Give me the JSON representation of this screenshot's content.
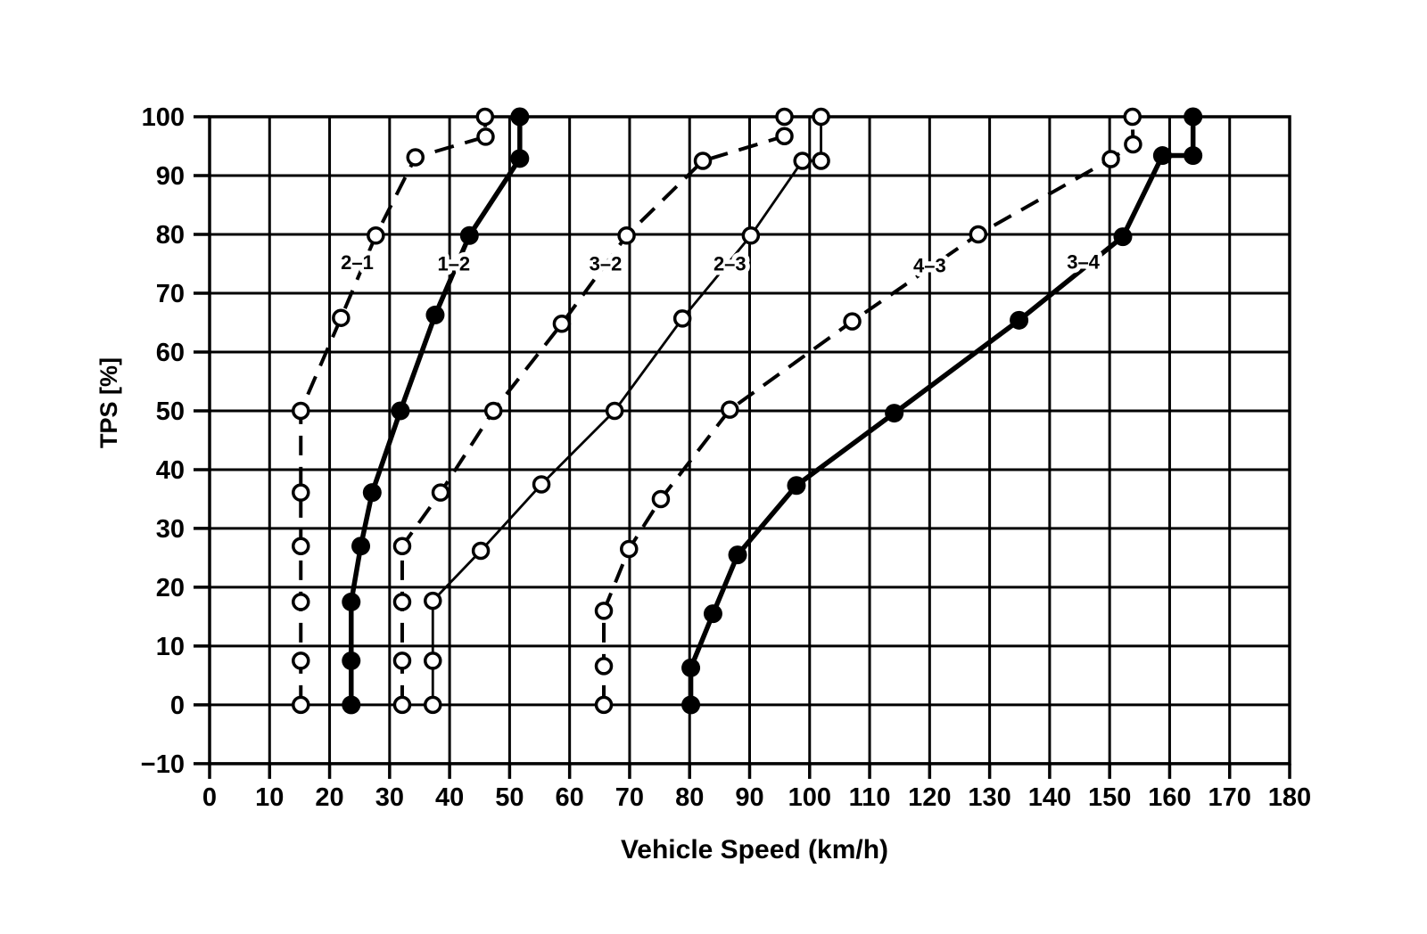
{
  "colors": {
    "ink": "#000000",
    "background": "#ffffff"
  },
  "chart_data": {
    "type": "line",
    "title": "",
    "xlabel": "Vehicle Speed (km/h)",
    "ylabel": "TPS [%]",
    "xlim": [
      0,
      180
    ],
    "ylim": [
      -10,
      100
    ],
    "grid": true,
    "legend_position": "none",
    "x_ticks": [
      0,
      10,
      20,
      30,
      40,
      50,
      60,
      70,
      80,
      90,
      100,
      110,
      120,
      130,
      140,
      150,
      160,
      170,
      180
    ],
    "x_tick_labels": [
      "0",
      "10",
      "20",
      "30",
      "40",
      "50",
      "60",
      "70",
      "80",
      "90",
      "100",
      "110",
      "120",
      "130",
      "140",
      "150",
      "160",
      "170",
      "180"
    ],
    "y_ticks": [
      -10,
      0,
      10,
      20,
      30,
      40,
      50,
      60,
      70,
      80,
      90,
      100
    ],
    "y_tick_labels": [
      "−10",
      "0",
      "10",
      "20",
      "30",
      "40",
      "50",
      "60",
      "70",
      "80",
      "90",
      "100"
    ],
    "series": [
      {
        "id": "2-1",
        "label": "2–1",
        "shift": "downshift",
        "line": "dashed",
        "marker": "open",
        "label_at": [
          24.6,
          75.3
        ],
        "points": [
          [
            15.2,
            0
          ],
          [
            15.2,
            7.5
          ],
          [
            15.2,
            17.5
          ],
          [
            15.2,
            27
          ],
          [
            15.2,
            36.1
          ],
          [
            15.2,
            50
          ],
          [
            21.9,
            65.8
          ],
          [
            27.7,
            79.8
          ],
          [
            34.3,
            93.1
          ],
          [
            46,
            96.6
          ],
          [
            45.9,
            100
          ]
        ]
      },
      {
        "id": "1-2",
        "label": "1–2",
        "shift": "upshift",
        "line": "solid-thick",
        "marker": "filled",
        "label_at": [
          40.7,
          75.1
        ],
        "points": [
          [
            23.6,
            0
          ],
          [
            23.6,
            7.5
          ],
          [
            23.6,
            17.5
          ],
          [
            25.2,
            27
          ],
          [
            27.1,
            36.1
          ],
          [
            31.8,
            50
          ],
          [
            37.6,
            66.3
          ],
          [
            43.3,
            79.8
          ],
          [
            51.7,
            92.9
          ],
          [
            51.7,
            100
          ]
        ]
      },
      {
        "id": "3-2",
        "label": "3–2",
        "shift": "downshift",
        "line": "dashed",
        "marker": "open",
        "label_at": [
          66,
          75.1
        ],
        "points": [
          [
            32.1,
            0
          ],
          [
            32.1,
            7.5
          ],
          [
            32.1,
            17.5
          ],
          [
            32.1,
            27
          ],
          [
            38.5,
            36.1
          ],
          [
            47.3,
            50
          ],
          [
            58.7,
            64.8
          ],
          [
            69.5,
            79.8
          ],
          [
            82.2,
            92.5
          ],
          [
            95.8,
            96.7
          ],
          [
            95.8,
            100
          ]
        ]
      },
      {
        "id": "2-3",
        "label": "2–3",
        "shift": "upshift",
        "line": "solid-thin",
        "marker": "open",
        "label_at": [
          86.7,
          75.1
        ],
        "points": [
          [
            37.2,
            0
          ],
          [
            37.2,
            7.5
          ],
          [
            37.2,
            17.7
          ],
          [
            45.2,
            26.2
          ],
          [
            55.3,
            37.5
          ],
          [
            67.5,
            50
          ],
          [
            78.8,
            65.7
          ],
          [
            90.2,
            79.8
          ],
          [
            98.8,
            92.5
          ],
          [
            101.9,
            92.5
          ],
          [
            101.9,
            100
          ]
        ]
      },
      {
        "id": "4-3",
        "label": "4–3",
        "shift": "downshift",
        "line": "dashed",
        "marker": "open",
        "label_at": [
          120,
          74.8
        ],
        "points": [
          [
            65.7,
            0
          ],
          [
            65.7,
            6.6
          ],
          [
            65.7,
            16
          ],
          [
            69.9,
            26.5
          ],
          [
            75.2,
            35
          ],
          [
            86.7,
            50.2
          ],
          [
            107.1,
            65.2
          ],
          [
            128.1,
            80
          ],
          [
            150.2,
            92.8
          ],
          [
            153.9,
            95.3
          ],
          [
            153.8,
            100
          ]
        ]
      },
      {
        "id": "3-4",
        "label": "3–4",
        "shift": "upshift",
        "line": "solid-thick",
        "marker": "filled",
        "label_at": [
          145.6,
          75.4
        ],
        "points": [
          [
            80.2,
            0
          ],
          [
            80.2,
            6.3
          ],
          [
            83.9,
            15.5
          ],
          [
            88,
            25.5
          ],
          [
            97.8,
            37.3
          ],
          [
            114.1,
            49.6
          ],
          [
            134.9,
            65.4
          ],
          [
            152.2,
            79.6
          ],
          [
            158.8,
            93.4
          ],
          [
            163.9,
            93.4
          ],
          [
            163.9,
            100
          ]
        ]
      }
    ]
  }
}
